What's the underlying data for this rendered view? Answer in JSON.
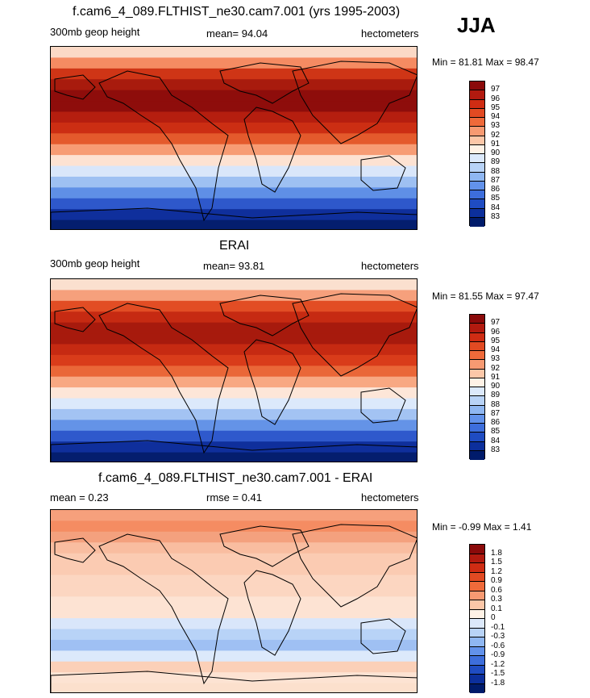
{
  "season": "JJA",
  "panels": [
    {
      "title": "f.cam6_4_089.FLTHIST_ne30.cam7.001 (yrs 1995-2003)",
      "left_label": "300mb geop height",
      "center_label": "mean=  94.04",
      "right_label": "hectometers",
      "minmax": "Min =  81.81 Max =  98.47",
      "colorbar": {
        "labels": [
          "97",
          "96",
          "95",
          "94",
          "93",
          "92",
          "91",
          "90",
          "89",
          "88",
          "87",
          "86",
          "85",
          "84",
          "83"
        ],
        "colors": [
          "#8b0a0a",
          "#b21a0f",
          "#cf2c13",
          "#e24a22",
          "#ef6a3a",
          "#f79a72",
          "#fcc7a8",
          "#fff2e6",
          "#dce9fb",
          "#b8d3f7",
          "#8fb7f2",
          "#6292eb",
          "#3d6edc",
          "#1f4cc2",
          "#0c2f9c",
          "#001b6b"
        ]
      },
      "map_bands": [
        "#fbd9c6",
        "#f58b62",
        "#cf3516",
        "#a81b0d",
        "#8e0d0b",
        "#8e0d0b",
        "#b51e0f",
        "#cc2e13",
        "#e45a2c",
        "#f79c74",
        "#fde2d2",
        "#d9e6fa",
        "#9ec0f2",
        "#5f8fe6",
        "#2e58cb",
        "#0f2f9c",
        "#041e6e"
      ]
    },
    {
      "title": "ERAI",
      "left_label": "300mb geop height",
      "center_label": "mean=  93.81",
      "right_label": "hectometers",
      "minmax": "Min =  81.55 Max =  97.47",
      "colorbar": {
        "labels": [
          "97",
          "96",
          "95",
          "94",
          "93",
          "92",
          "91",
          "90",
          "89",
          "88",
          "87",
          "86",
          "85",
          "84",
          "83"
        ],
        "colors": [
          "#8b0a0a",
          "#b21a0f",
          "#cf2c13",
          "#e24a22",
          "#ef6a3a",
          "#f79a72",
          "#fcc7a8",
          "#fff2e6",
          "#dce9fb",
          "#b8d3f7",
          "#8fb7f2",
          "#6292eb",
          "#3d6edc",
          "#1f4cc2",
          "#0c2f9c",
          "#001b6b"
        ]
      },
      "map_bands": [
        "#fbe0cf",
        "#f6a07c",
        "#e24d24",
        "#c62a12",
        "#a71a0d",
        "#a71a0d",
        "#c62a12",
        "#d93c1a",
        "#ea6738",
        "#f8a882",
        "#fde6d8",
        "#dce9fb",
        "#a3c3f3",
        "#6493e7",
        "#2f59cc",
        "#0f2f9c",
        "#041e6e"
      ]
    },
    {
      "title": "f.cam6_4_089.FLTHIST_ne30.cam7.001 - ERAI",
      "left_label": "mean =   0.23",
      "center_label": "rmse =   0.41",
      "right_label": "hectometers",
      "minmax": "Min =  -0.99 Max =   1.41",
      "colorbar": {
        "labels": [
          "1.8",
          "1.5",
          "1.2",
          "0.9",
          "0.6",
          "0.3",
          "0.1",
          "0",
          "-0.1",
          "-0.3",
          "-0.6",
          "-0.9",
          "-1.2",
          "-1.5",
          "-1.8"
        ],
        "colors": [
          "#8b0a0a",
          "#b21a0f",
          "#cf2c13",
          "#e24a22",
          "#ef6a3a",
          "#f79a72",
          "#fcc7a8",
          "#fff2e6",
          "#dce9fb",
          "#b8d3f7",
          "#8fb7f2",
          "#6292eb",
          "#3d6edc",
          "#1f4cc2",
          "#0c2f9c",
          "#001b6b"
        ]
      },
      "map_bands": [
        "#f6a07c",
        "#f58c62",
        "#f4a17e",
        "#f9bda0",
        "#fbcbb2",
        "#fbcbb2",
        "#fcd6c1",
        "#fcd6c1",
        "#fde3d3",
        "#fde3d3",
        "#d9e6fa",
        "#b8d3f7",
        "#9fc0f3",
        "#dce9fb",
        "#fbd0b8",
        "#fde3d3",
        "#fce0cd"
      ]
    }
  ]
}
